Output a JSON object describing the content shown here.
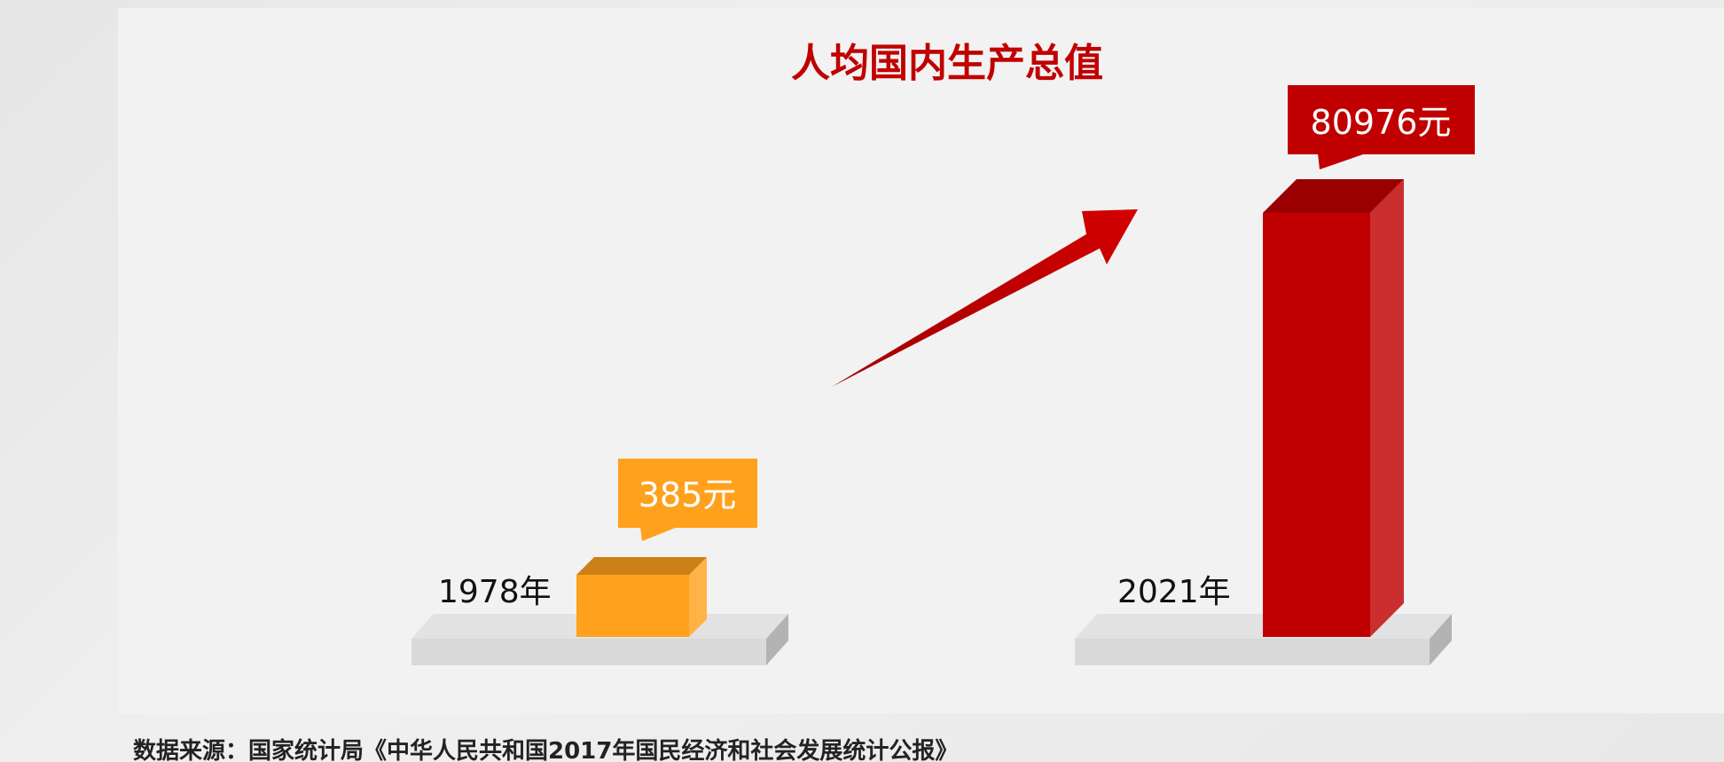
{
  "chart_data": {
    "type": "bar",
    "title": "人均国内生产总值",
    "categories": [
      "1978年",
      "2021年"
    ],
    "values": [
      385,
      80976
    ],
    "value_labels": [
      "385元",
      "80976元"
    ],
    "unit": "元",
    "colors": {
      "bar_1978": "#ffa11c",
      "bar_2021": "#c00000",
      "arrow": "#c00000",
      "title": "#c00000"
    }
  },
  "source_note": "数据来源：国家统计局《中华人民共和国2017年国民经济和社会发展统计公报》"
}
